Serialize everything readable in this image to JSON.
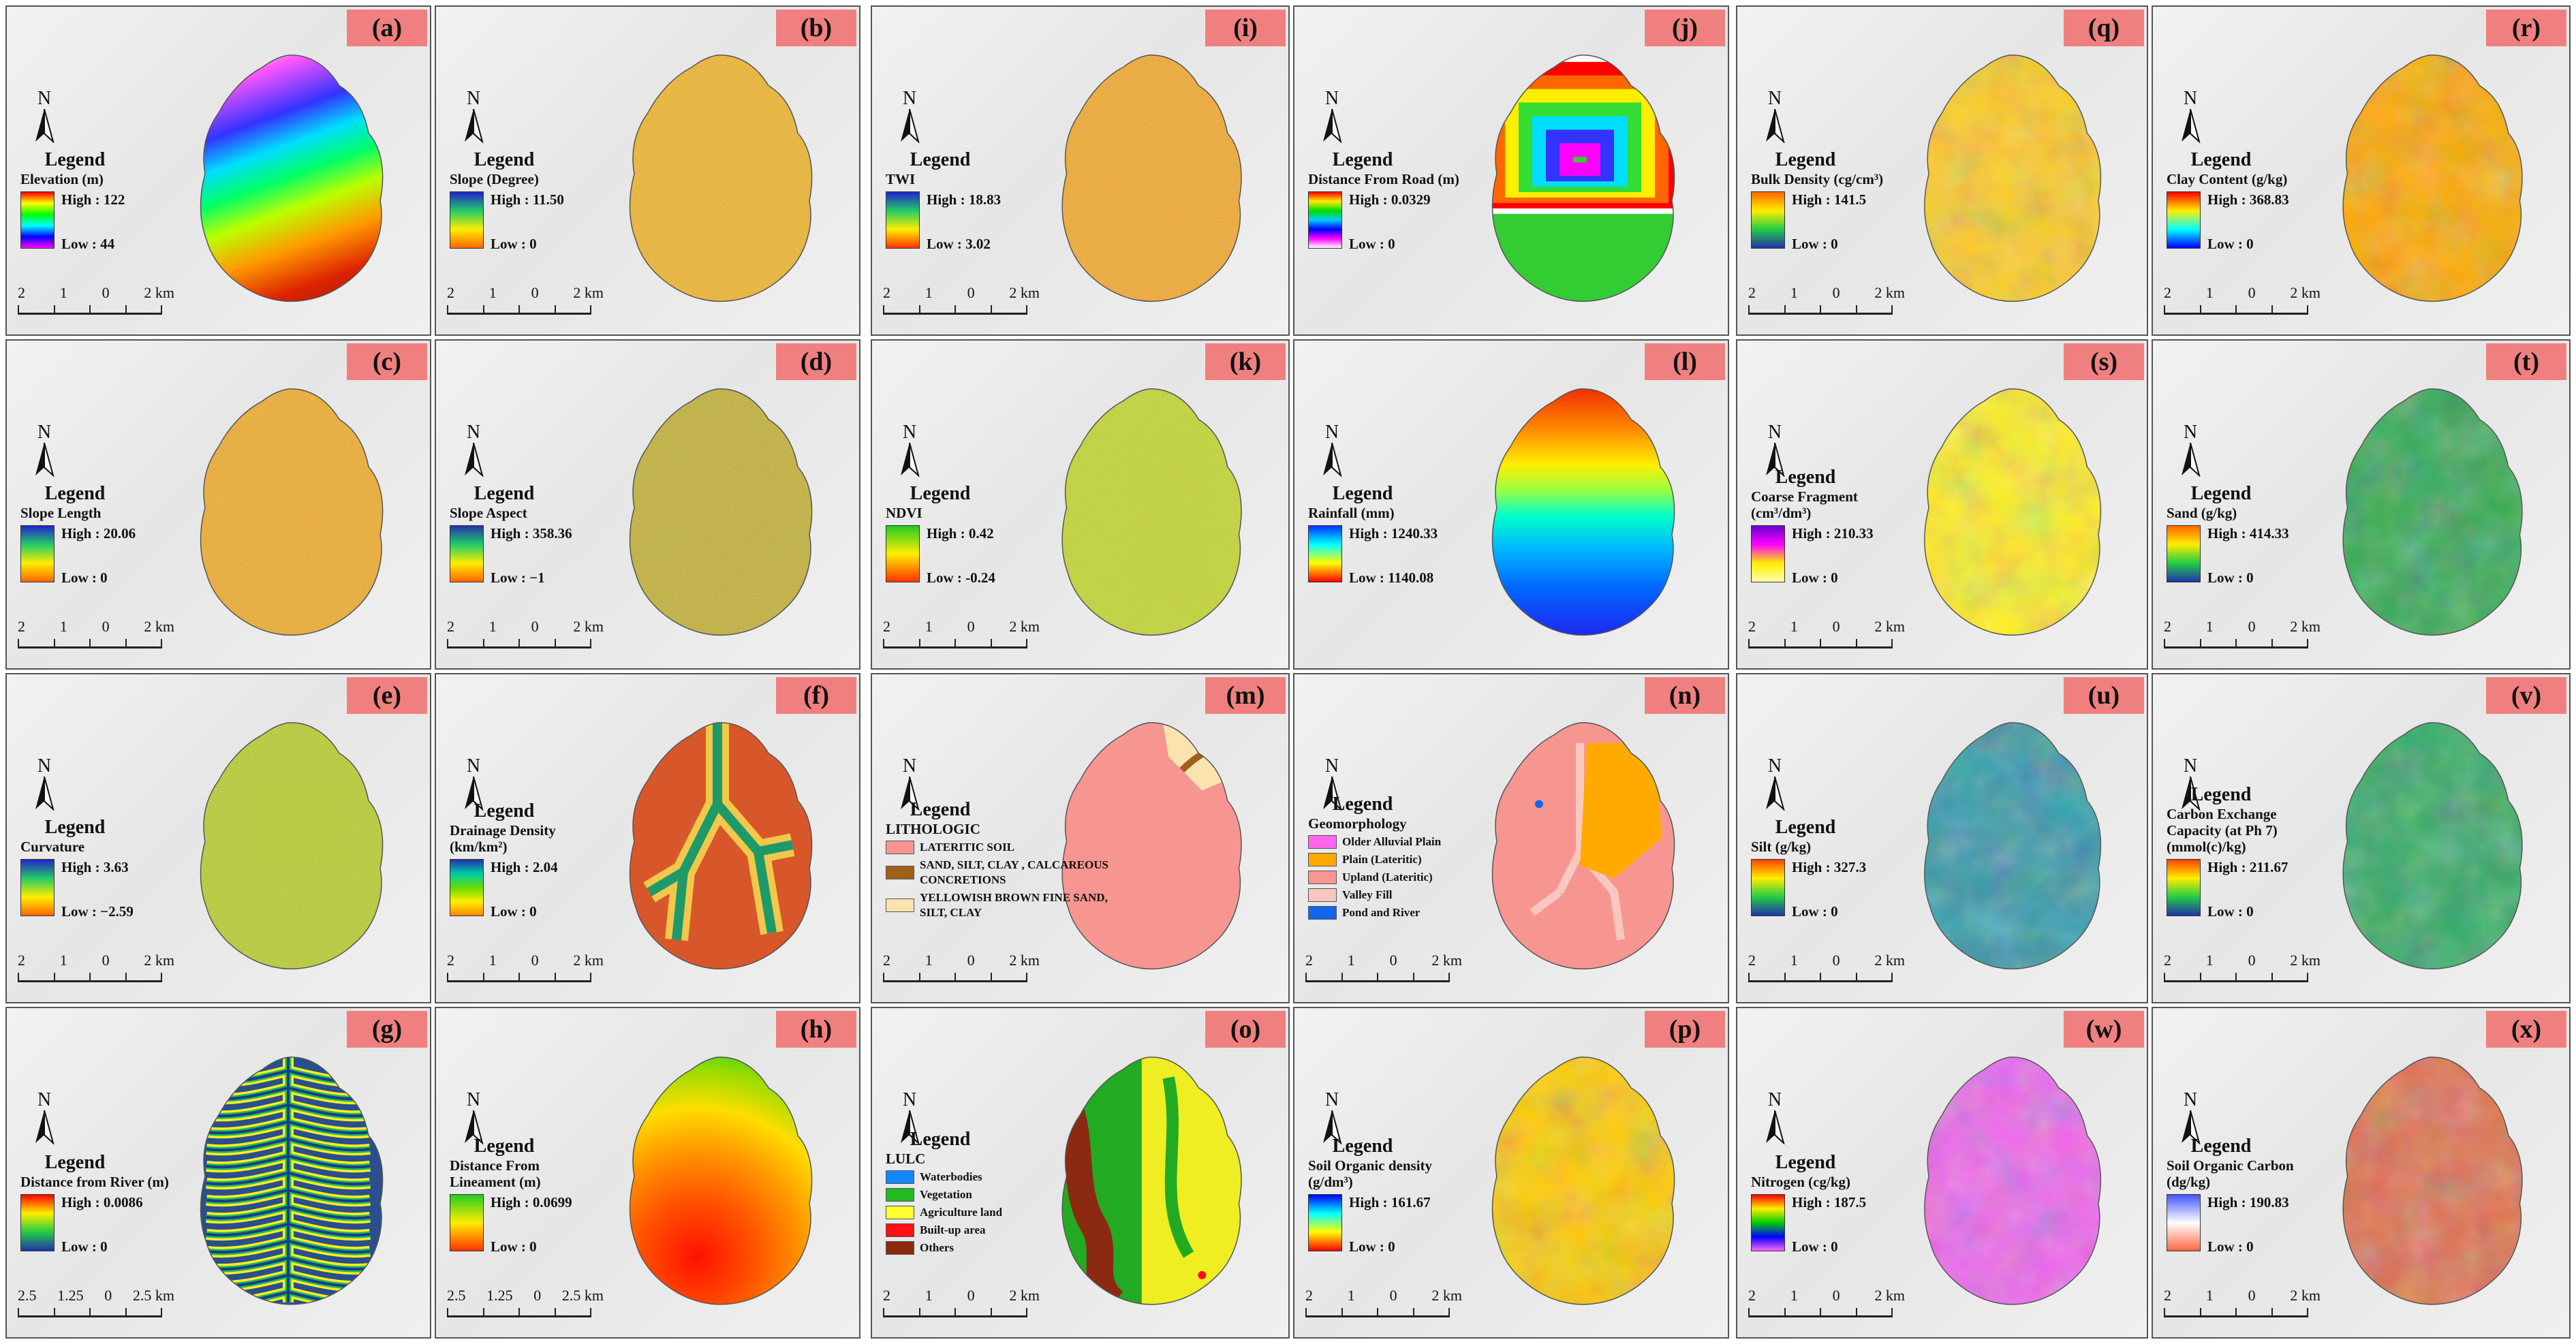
{
  "panels": [
    {
      "id": "a",
      "tag": "(a)",
      "title": "Legend",
      "sub": "Elevation (m)",
      "high": "High : 122",
      "low": "Low : 44",
      "scale": [
        "2",
        "1",
        "0",
        "2 km"
      ],
      "grad": "linear-gradient(#ff0000,#ffff00,#00ff00,#00ffff,#0000ff,#ff00ff)",
      "maptype": "grad",
      "mapgrad": "linear-gradient(160deg,#ffffff 5%,#ff55ff 15%,#3333ff 30%,#00ddff 40%,#00ff66 50%,#bbff00 60%,#ff9900 72%,#dd2200 85%,#992200 100%)"
    },
    {
      "id": "b",
      "tag": "(b)",
      "title": "Legend",
      "sub": "Slope (Degree)",
      "high": "High : 11.50",
      "low": "Low : 0",
      "scale": [
        "2",
        "1",
        "0",
        "2 km"
      ],
      "grad": "linear-gradient(#2222cc,#22cc66,#ffee00,#ff6600)",
      "maptype": "noise",
      "mapgrad": "#d9a030"
    },
    {
      "id": "c",
      "tag": "(c)",
      "title": "Legend",
      "sub": "Slope Length",
      "high": "High : 20.06",
      "low": "Low : 0",
      "scale": [
        "2",
        "1",
        "0",
        "2 km"
      ],
      "grad": "linear-gradient(#2222cc,#22cc66,#ffee00,#ff6600)",
      "maptype": "noise",
      "mapgrad": "#d99030"
    },
    {
      "id": "d",
      "tag": "(d)",
      "title": "Legend",
      "sub": "Slope Aspect",
      "high": "High : 358.36",
      "low": "Low : −1",
      "scale": [
        "2",
        "1",
        "0",
        "2 km"
      ],
      "grad": "linear-gradient(#2233aa,#22cc66,#ffee00,#ff6600)",
      "maptype": "noise",
      "mapgrad": "#889944"
    },
    {
      "id": "e",
      "tag": "(e)",
      "title": "Legend",
      "sub": "Curvature",
      "high": "High : 3.63",
      "low": "Low : −2.59",
      "scale": [
        "2",
        "1",
        "0",
        "2 km"
      ],
      "grad": "linear-gradient(#2222cc,#22cc66,#ffee00,#ff6600)",
      "maptype": "noise",
      "mapgrad": "#77cc33"
    },
    {
      "id": "f",
      "tag": "(f)",
      "title": "Legend",
      "sub": "Drainage  Density (km/km²)",
      "high": "High : 2.04",
      "low": "Low : 0",
      "scale": [
        "2",
        "1",
        "0",
        "2 km"
      ],
      "grad": "linear-gradient(#2233aa,#00ccaa,#66dd00,#ffee00,#ff8800)",
      "maptype": "drain",
      "mapgrad": "#d8572a"
    },
    {
      "id": "g",
      "tag": "(g)",
      "title": "Legend",
      "sub": "Distance from River (m)",
      "high": "High : 0.0086",
      "low": "Low : 0",
      "scale": [
        "2.5",
        "1.25",
        "0",
        "2.5 km"
      ],
      "grad": "linear-gradient(#ff0000,#ffee00,#22cc44,#2233aa)",
      "maptype": "river",
      "mapgrad": "#2a4f8c"
    },
    {
      "id": "h",
      "tag": "(h)",
      "title": "Legend",
      "sub": "Distance From Lineament (m)",
      "high": "High : 0.0699",
      "low": "Low : 0",
      "scale": [
        "2.5",
        "1.25",
        "0",
        "2.5 km"
      ],
      "grad": "linear-gradient(#22cc22,#ffee00,#ff3300)",
      "maptype": "grad",
      "mapgrad": "radial-gradient(circle at 40% 80%,#ff1100 0%,#ff5500 25%,#ff9900 45%,#ffdd00 62%,#99dd00 78%,#22cc22 92%)"
    },
    {
      "id": "i",
      "tag": "(i)",
      "title": "Legend",
      "sub": "TWI",
      "high": "High : 18.83",
      "low": "Low : 3.02",
      "scale": [
        "2",
        "1",
        "0",
        "2 km"
      ],
      "grad": "linear-gradient(#2222cc,#22cc66,#ffee00,#ff3300)",
      "maptype": "noise",
      "mapgrad": "#e08a30"
    },
    {
      "id": "j",
      "tag": "(j)",
      "title": "Legend",
      "sub": "Distance From Road (m)",
      "high": "High : 0.0329",
      "low": "Low : 0",
      "scale": [],
      "grad": "linear-gradient(#ff0000,#ffee00,#00dd00,#00ccff,#0000ff,#ff00ff,#ffffff)",
      "maptype": "road",
      "mapgrad": "#33cc33"
    },
    {
      "id": "k",
      "tag": "(k)",
      "title": "Legend",
      "sub": "NDVI",
      "high": "High : 0.42",
      "low": "Low : -0.24",
      "scale": [
        "2",
        "1",
        "0",
        "2 km"
      ],
      "grad": "linear-gradient(#22cc22,#ffee00,#ff3300)",
      "maptype": "noise",
      "mapgrad": "#88dd33"
    },
    {
      "id": "l",
      "tag": "(l)",
      "title": "Legend",
      "sub": "Rainfall (mm)",
      "high": "High : 1240.33",
      "low": "Low : 1140.08",
      "scale": [],
      "grad": "linear-gradient(#0033ff,#00ffff,#ffff00,#ff0000)",
      "maptype": "grad",
      "mapgrad": "linear-gradient(180deg,#ee2200 0%,#ff8800 18%,#ffee00 32%,#99ff44 42%,#00ffcc 52%,#00bbff 64%,#0066ff 80%,#2222ee 100%)"
    },
    {
      "id": "m",
      "tag": "(m)",
      "title": "Legend",
      "sub": "LITHOLOGIC",
      "high": "",
      "low": "",
      "scale": [
        "2",
        "1",
        "0",
        "2 km"
      ],
      "grad": "",
      "maptype": "flat",
      "mapgrad": "#f79691",
      "cats": [
        {
          "label": "LATERITIC SOIL",
          "color": "#f79691"
        },
        {
          "label": "SAND, SILT, CLAY , CALCAREOUS CONCRETIONS",
          "color": "#a0601a"
        },
        {
          "label": "YELLOWISH BROWN FINE SAND, SILT, CLAY",
          "color": "#fbe3b0"
        }
      ]
    },
    {
      "id": "n",
      "tag": "(n)",
      "title": "Legend",
      "sub": "Geomorphology",
      "high": "",
      "low": "",
      "scale": [
        "2",
        "1",
        "0",
        "2 km"
      ],
      "grad": "",
      "maptype": "flat",
      "mapgrad": "#f79691",
      "cats": [
        {
          "label": "Older Alluvial Plain",
          "color": "#ff66ee"
        },
        {
          "label": "Plain (Lateritic)",
          "color": "#ffaa00"
        },
        {
          "label": "Upland (Lateritic)",
          "color": "#f79691"
        },
        {
          "label": "Valley Fill",
          "color": "#f8c8c0"
        },
        {
          "label": "Pond and River",
          "color": "#1166ee"
        }
      ]
    },
    {
      "id": "o",
      "tag": "(o)",
      "title": "Legend",
      "sub": "LULC",
      "high": "",
      "low": "",
      "scale": [
        "2",
        "1",
        "0",
        "2 km"
      ],
      "grad": "",
      "maptype": "lulc",
      "mapgrad": "#eeee22",
      "cats": [
        {
          "label": "Waterbodies",
          "color": "#1188ff"
        },
        {
          "label": "Vegetation",
          "color": "#22bb22"
        },
        {
          "label": "Agriculture land",
          "color": "#ffff33"
        },
        {
          "label": "Built-up area",
          "color": "#ff1111"
        },
        {
          "label": "Others",
          "color": "#8b2a10"
        }
      ]
    },
    {
      "id": "p",
      "tag": "(p)",
      "title": "Legend",
      "sub": "Soil Organic density (g/dm³)",
      "high": "High : 161.67",
      "low": "Low : 0",
      "scale": [
        "2",
        "1",
        "0",
        "2 km"
      ],
      "grad": "linear-gradient(#0000ff,#00ffff,#ffff00,#ff0000)",
      "maptype": "blob",
      "mapgrad": "#ffcc00"
    },
    {
      "id": "q",
      "tag": "(q)",
      "title": "Legend",
      "sub": "Bulk Density (cg/cm³)",
      "high": "High : 141.5",
      "low": "Low : 0",
      "scale": [
        "2",
        "1",
        "0",
        "2 km"
      ],
      "grad": "linear-gradient(#ff6600,#ffee00,#22cc44,#2233aa)",
      "maptype": "blob",
      "mapgrad": "#ffcc22"
    },
    {
      "id": "r",
      "tag": "(r)",
      "title": "Legend",
      "sub": "Clay Content (g/kg)",
      "high": "High : 368.83",
      "low": "Low : 0",
      "scale": [
        "2",
        "1",
        "0",
        "2 km"
      ],
      "grad": "linear-gradient(#ff0000,#ffee00,#00ffff,#0000ff)",
      "maptype": "blob",
      "mapgrad": "#ffaa00"
    },
    {
      "id": "s",
      "tag": "(s)",
      "title": "Legend",
      "sub": "Coarse Fragment (cm³/dm³)",
      "high": "High : 210.33",
      "low": "Low : 0",
      "scale": [
        "2",
        "1",
        "0",
        "2 km"
      ],
      "grad": "linear-gradient(#6600cc,#ff00ff,#ffee00,#ffffaa)",
      "maptype": "blob",
      "mapgrad": "#ffee22"
    },
    {
      "id": "t",
      "tag": "(t)",
      "title": "Legend",
      "sub": "Sand (g/kg)",
      "high": "High : 414.33",
      "low": "Low : 0",
      "scale": [
        "2",
        "1",
        "0",
        "2 km"
      ],
      "grad": "linear-gradient(#ff6600,#ffee00,#22cc44,#2233aa)",
      "maptype": "blob",
      "mapgrad": "#33aa55"
    },
    {
      "id": "u",
      "tag": "(u)",
      "title": "Legend",
      "sub": "Silt (g/kg)",
      "high": "High : 327.3",
      "low": "Low : 0",
      "scale": [
        "2",
        "1",
        "0",
        "2 km"
      ],
      "grad": "linear-gradient(#ff4400,#ffee00,#22cc44,#2233aa)",
      "maptype": "blob",
      "mapgrad": "#3399aa"
    },
    {
      "id": "v",
      "tag": "(v)",
      "title": "Legend",
      "sub": "Carbon Exchange Capacity (at Ph 7)  (mmol(c)/kg)",
      "high": "High : 211.67",
      "low": "Low : 0",
      "scale": [
        "2",
        "1",
        "0",
        "2 km"
      ],
      "grad": "linear-gradient(#ff4400,#ffee00,#22cc44,#2233aa)",
      "maptype": "blob",
      "mapgrad": "#33aa66"
    },
    {
      "id": "w",
      "tag": "(w)",
      "title": "Legend",
      "sub": "Nitrogen (cg/kg)",
      "high": "High : 187.5",
      "low": "Low : 0",
      "scale": [
        "2",
        "1",
        "0",
        "2 km"
      ],
      "grad": "linear-gradient(#ff0000,#ffee00,#00cc00,#0000ff,#ff66ff)",
      "maptype": "blob",
      "mapgrad": "#ee66ee"
    },
    {
      "id": "x",
      "tag": "(x)",
      "title": "Legend",
      "sub": "Soil Organic Carbon (dg/kg)",
      "high": "High : 190.83",
      "low": "Low : 0",
      "scale": [
        "2",
        "1",
        "0",
        "2 km"
      ],
      "grad": "linear-gradient(#4455ff,#ffffff,#ff6644)",
      "maptype": "blob",
      "mapgrad": "#e07050"
    }
  ]
}
